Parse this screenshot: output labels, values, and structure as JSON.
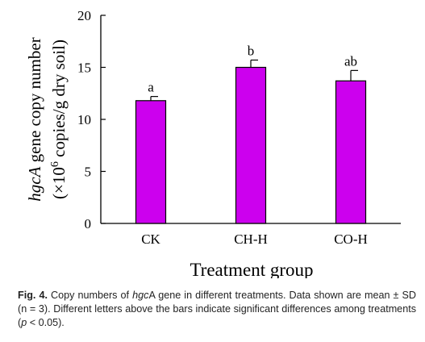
{
  "chart_data": {
    "type": "bar",
    "categories": [
      "CK",
      "CH-H",
      "CO-H"
    ],
    "values": [
      11.8,
      15.0,
      13.7
    ],
    "errors": [
      0.4,
      0.7,
      1.0
    ],
    "significance": [
      "a",
      "b",
      "ab"
    ],
    "ylim": [
      0,
      20
    ],
    "yticks": [
      "0",
      "5",
      "10",
      "15",
      "20"
    ],
    "xlabel": "Treatment group",
    "ylabel_line1_italic": "hgcA",
    "ylabel_line1_rest": " gene copy number",
    "ylabel_line2_pre": "(×10",
    "ylabel_line2_sup": "6",
    "ylabel_line2_post": " copies/g dry soil)",
    "bar_color": "#cc00ee",
    "grid": false
  },
  "caption": {
    "label": "Fig. 4.",
    "text_1": " Copy numbers of ",
    "gene_italic": "hgc",
    "gene_rest": "A gene in different treatments. Data shown are mean ± SD (n = 3). Different letters above the bars indicate significant differences among treatments (",
    "p_italic": "p",
    "text_2": " < 0.05)."
  }
}
